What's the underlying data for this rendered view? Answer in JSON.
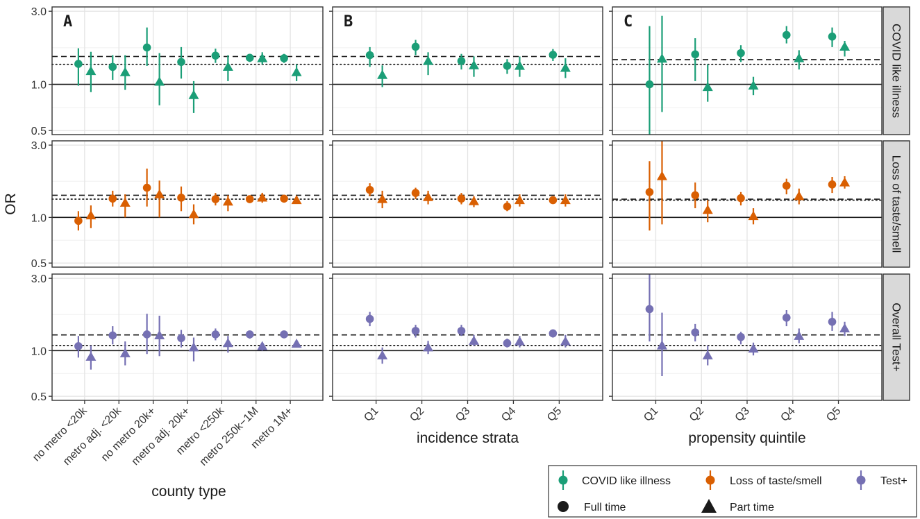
{
  "chart_data": {
    "type": "scatter",
    "ylabel": "OR",
    "y_scale": "log",
    "ylim": [
      0.47,
      3.2
    ],
    "y_ticks": [
      "0.5",
      "1.0",
      "3.0"
    ],
    "reference_lines": {
      "solid": 1.0
    },
    "legend_placement": "bottom-right",
    "legend": {
      "outcomes": [
        {
          "name": "COVID like illness",
          "color": "#1b9e77"
        },
        {
          "name": "Loss of taste/smell",
          "color": "#d95f02"
        },
        {
          "name": "Test+",
          "color": "#7570b3"
        }
      ],
      "shapes": [
        {
          "name": "Full time",
          "shape": "circle"
        },
        {
          "name": "Part time",
          "shape": "triangle"
        }
      ]
    },
    "columns": [
      {
        "letter": "A",
        "xlabel": "county type",
        "categories": [
          "no metro <20k",
          "metro adj. <20k",
          "no metro 20k+",
          "metro adj. 20k+",
          "metro <250k",
          "metro 250k−1M",
          "metro 1M+"
        ]
      },
      {
        "letter": "B",
        "xlabel": "incidence strata",
        "categories": [
          "Q1",
          "Q2",
          "Q3",
          "Q4",
          "Q5"
        ]
      },
      {
        "letter": "C",
        "xlabel": "propensity quintile",
        "categories": [
          "Q1",
          "Q2",
          "Q3",
          "Q4",
          "Q5"
        ]
      }
    ],
    "rows": [
      {
        "label": "COVID like illness",
        "color": "#1b9e77",
        "panels": [
          {
            "dashed": 1.52,
            "dotted": 1.35,
            "full_time": [
              [
                1.36,
                0.98,
                1.72
              ],
              [
                1.3,
                1.07,
                1.55
              ],
              [
                1.74,
                1.32,
                2.35
              ],
              [
                1.4,
                1.09,
                1.75
              ],
              [
                1.54,
                1.38,
                1.71
              ],
              [
                1.49,
                1.4,
                1.58
              ],
              [
                1.48,
                1.38,
                1.58
              ]
            ],
            "part_time": [
              [
                1.22,
                0.89,
                1.63
              ],
              [
                1.2,
                0.92,
                1.55
              ],
              [
                1.04,
                0.73,
                1.6
              ],
              [
                0.85,
                0.65,
                1.05
              ],
              [
                1.3,
                1.05,
                1.55
              ],
              [
                1.48,
                1.35,
                1.62
              ],
              [
                1.2,
                1.05,
                1.35
              ]
            ]
          },
          {
            "dashed": 1.52,
            "dotted": 1.35,
            "full_time": [
              [
                1.55,
                1.3,
                1.75
              ],
              [
                1.76,
                1.55,
                1.95
              ],
              [
                1.42,
                1.25,
                1.58
              ],
              [
                1.32,
                1.17,
                1.46
              ],
              [
                1.56,
                1.42,
                1.7
              ]
            ],
            "part_time": [
              [
                1.15,
                0.96,
                1.33
              ],
              [
                1.42,
                1.15,
                1.62
              ],
              [
                1.33,
                1.12,
                1.52
              ],
              [
                1.32,
                1.12,
                1.52
              ],
              [
                1.28,
                1.1,
                1.48
              ]
            ]
          },
          {
            "dashed": 1.45,
            "dotted": 1.35,
            "full_time": [
              [
                1.0,
                0.46,
                2.4
              ],
              [
                1.57,
                1.05,
                2.0
              ],
              [
                1.6,
                1.4,
                1.8
              ],
              [
                2.1,
                1.85,
                2.4
              ],
              [
                2.05,
                1.75,
                2.35
              ]
            ],
            "part_time": [
              [
                1.47,
                0.66,
                2.8
              ],
              [
                0.96,
                0.77,
                1.35
              ],
              [
                0.98,
                0.85,
                1.12
              ],
              [
                1.48,
                1.25,
                1.67
              ],
              [
                1.76,
                1.52,
                1.92
              ]
            ]
          }
        ]
      },
      {
        "label": "Loss of taste/smell",
        "color": "#d95f02",
        "panels": [
          {
            "dashed": 1.4,
            "dotted": 1.32,
            "full_time": [
              [
                0.95,
                0.82,
                1.1
              ],
              [
                1.33,
                1.18,
                1.5
              ],
              [
                1.57,
                1.18,
                2.1
              ],
              [
                1.35,
                1.1,
                1.6
              ],
              [
                1.32,
                1.2,
                1.45
              ],
              [
                1.32,
                1.28,
                1.37
              ],
              [
                1.33,
                1.28,
                1.38
              ]
            ],
            "part_time": [
              [
                1.03,
                0.85,
                1.2
              ],
              [
                1.25,
                1.0,
                1.42
              ],
              [
                1.42,
                1.0,
                1.75
              ],
              [
                1.05,
                0.9,
                1.22
              ],
              [
                1.27,
                1.1,
                1.4
              ],
              [
                1.35,
                1.25,
                1.45
              ],
              [
                1.3,
                1.24,
                1.38
              ]
            ]
          },
          {
            "dashed": 1.4,
            "dotted": 1.32,
            "full_time": [
              [
                1.52,
                1.38,
                1.68
              ],
              [
                1.45,
                1.32,
                1.57
              ],
              [
                1.33,
                1.22,
                1.45
              ],
              [
                1.18,
                1.1,
                1.28
              ],
              [
                1.3,
                1.23,
                1.37
              ]
            ],
            "part_time": [
              [
                1.32,
                1.15,
                1.5
              ],
              [
                1.36,
                1.22,
                1.5
              ],
              [
                1.28,
                1.17,
                1.38
              ],
              [
                1.3,
                1.18,
                1.42
              ],
              [
                1.3,
                1.18,
                1.42
              ]
            ]
          },
          {
            "dashed": 1.32,
            "dotted": 1.3,
            "full_time": [
              [
                1.47,
                0.82,
                2.35
              ],
              [
                1.4,
                1.15,
                1.7
              ],
              [
                1.34,
                1.2,
                1.47
              ],
              [
                1.62,
                1.42,
                1.8
              ],
              [
                1.65,
                1.45,
                1.85
              ]
            ],
            "part_time": [
              [
                1.87,
                0.9,
                3.3
              ],
              [
                1.12,
                0.93,
                1.3
              ],
              [
                1.02,
                0.9,
                1.15
              ],
              [
                1.38,
                1.22,
                1.55
              ],
              [
                1.7,
                1.55,
                1.87
              ]
            ]
          }
        ]
      },
      {
        "label": "Overall Test+",
        "color": "#7570b3",
        "panels": [
          {
            "dashed": 1.27,
            "dotted": 1.08,
            "full_time": [
              [
                1.07,
                0.9,
                1.25
              ],
              [
                1.26,
                1.1,
                1.45
              ],
              [
                1.28,
                0.95,
                1.75
              ],
              [
                1.21,
                1.05,
                1.37
              ],
              [
                1.28,
                1.17,
                1.4
              ],
              [
                1.28,
                1.2,
                1.35
              ],
              [
                1.28,
                1.24,
                1.33
              ]
            ],
            "part_time": [
              [
                0.91,
                0.75,
                1.08
              ],
              [
                0.96,
                0.8,
                1.15
              ],
              [
                1.26,
                0.92,
                1.7
              ],
              [
                1.05,
                0.85,
                1.22
              ],
              [
                1.12,
                0.97,
                1.25
              ],
              [
                1.07,
                1.0,
                1.13
              ],
              [
                1.11,
                1.06,
                1.16
              ]
            ]
          },
          {
            "dashed": 1.27,
            "dotted": 1.08,
            "full_time": [
              [
                1.62,
                1.45,
                1.8
              ],
              [
                1.35,
                1.22,
                1.48
              ],
              [
                1.35,
                1.25,
                1.48
              ],
              [
                1.12,
                1.05,
                1.2
              ],
              [
                1.3,
                1.22,
                1.38
              ]
            ],
            "part_time": [
              [
                0.93,
                0.82,
                1.05
              ],
              [
                1.05,
                0.95,
                1.16
              ],
              [
                1.16,
                1.07,
                1.27
              ],
              [
                1.15,
                1.05,
                1.25
              ],
              [
                1.15,
                1.05,
                1.27
              ]
            ]
          },
          {
            "dashed": 1.27,
            "dotted": 1.08,
            "full_time": [
              [
                1.88,
                1.15,
                3.2
              ],
              [
                1.32,
                1.15,
                1.5
              ],
              [
                1.23,
                1.1,
                1.33
              ],
              [
                1.65,
                1.45,
                1.85
              ],
              [
                1.55,
                1.35,
                1.8
              ]
            ],
            "part_time": [
              [
                1.08,
                0.68,
                1.78
              ],
              [
                0.93,
                0.8,
                1.08
              ],
              [
                1.03,
                0.93,
                1.13
              ],
              [
                1.25,
                1.12,
                1.4
              ],
              [
                1.4,
                1.25,
                1.55
              ]
            ]
          }
        ]
      }
    ]
  }
}
